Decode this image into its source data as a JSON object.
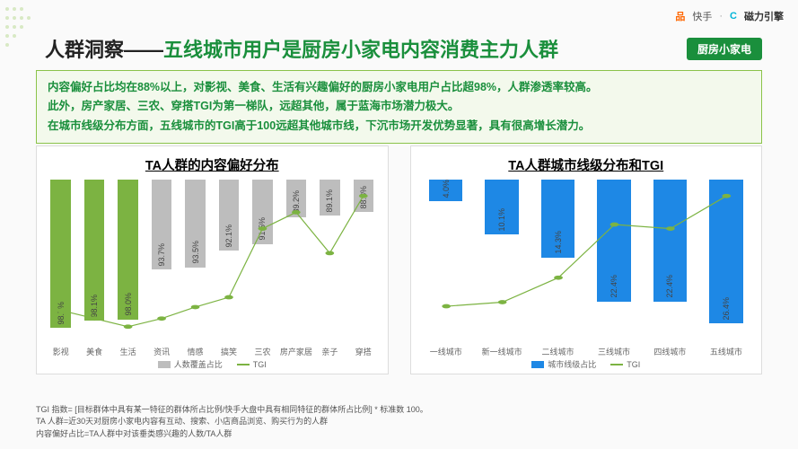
{
  "header": {
    "logo1_icon": "品",
    "logo1_text": "快手",
    "separator": "·",
    "logo2_icon": "C",
    "logo2_text": "磁力引擎"
  },
  "title": {
    "prefix": "人群洞察——",
    "highlight": "五线城市用户是厨房小家电内容消费主力人群"
  },
  "badge": "厨房小家电",
  "summary": {
    "line1": "内容偏好占比均在88%以上，对影视、美食、生活有兴趣偏好的厨房小家电用户占比超98%，人群渗透率较高。",
    "line2": "此外，房产家居、三农、穿搭TGI为第一梯队，远超其他，属于蓝海市场潜力极大。",
    "line3": "在城市线级分布方面，五线城市的TGI高于100远超其他城市线，下沉市场开发优势显著，具有很高增长潜力。"
  },
  "colors": {
    "brand_green": "#1a8f3c",
    "bar_green": "#7cb342",
    "bar_gray": "#bdbdbd",
    "line_green": "#7cb342",
    "bar_blue": "#1e88e5",
    "panel_border": "#dddddd",
    "summary_bg": "#f3f9ec",
    "summary_border": "#8bc34a",
    "text_dark": "#222222"
  },
  "chart1": {
    "type": "bar+line",
    "title": "TA人群的内容偏好分布",
    "categories": [
      "影视",
      "美食",
      "生活",
      "资讯",
      "情感",
      "搞笑",
      "三农",
      "房产家居",
      "亲子",
      "穿搭"
    ],
    "bar_values": [
      98.7,
      98.1,
      98.0,
      93.7,
      93.5,
      92.1,
      91.5,
      89.2,
      89.1,
      88.8
    ],
    "bar_labels": [
      "98.7%",
      "98.1%",
      "98.0%",
      "93.7%",
      "93.5%",
      "92.1%",
      "91.5%",
      "89.2%",
      "89.1%",
      "88.8%"
    ],
    "bar_colors": [
      "#7cb342",
      "#7cb342",
      "#7cb342",
      "#bdbdbd",
      "#bdbdbd",
      "#bdbdbd",
      "#bdbdbd",
      "#bdbdbd",
      "#bdbdbd",
      "#bdbdbd"
    ],
    "bar_ylim": [
      86,
      100
    ],
    "tgi_values": [
      60,
      55,
      50,
      55,
      62,
      68,
      110,
      120,
      95,
      130
    ],
    "tgi_ylim": [
      40,
      140
    ],
    "line_color": "#7cb342",
    "legend_bar": "人数覆盖占比",
    "legend_line": "TGI",
    "legend_bar_color": "#bdbdbd",
    "label_fontsize": 9
  },
  "chart2": {
    "type": "bar+line",
    "title": "TA人群城市线级分布和TGI",
    "categories": [
      "一线城市",
      "新一线城市",
      "二线城市",
      "三线城市",
      "四线城市",
      "五线城市"
    ],
    "bar_values": [
      4.0,
      10.1,
      14.3,
      22.4,
      22.4,
      26.4
    ],
    "bar_labels": [
      "4.0%",
      "10.1%",
      "14.3%",
      "22.4%",
      "22.4%",
      "26.4%"
    ],
    "bar_color": "#1e88e5",
    "bar_ylim": [
      0,
      30
    ],
    "tgi_values": [
      58,
      60,
      72,
      98,
      96,
      112
    ],
    "tgi_ylim": [
      40,
      120
    ],
    "line_color": "#7cb342",
    "legend_bar": "城市线级占比",
    "legend_line": "TGI",
    "label_fontsize": 9
  },
  "footnotes": {
    "f1": "TGI 指数= [目标群体中具有某一特征的群体所占比例/快手大盘中具有相同特征的群体所占比例] * 标准数 100。",
    "f2": "TA 人群=近30天对厨房小家电内容有互动、搜索、小店商品浏览、购买行为的人群",
    "f3": "内容偏好占比=TA人群中对该垂类感兴趣的人数/TA人群"
  }
}
